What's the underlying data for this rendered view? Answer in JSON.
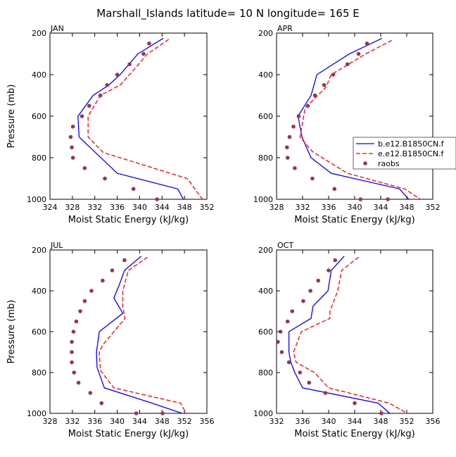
{
  "title": "Marshall_Islands   latitude= 10 N longitude= 165 E",
  "colors": {
    "b_series": "#0000ff",
    "e_series": "#ff0000",
    "raobs": "#a0305a"
  },
  "legend": {
    "placement": "right",
    "entries": [
      "b.e12.B1850CN.f",
      "e.e12.B1850CN.f",
      "raobs"
    ]
  },
  "chart_data": [
    {
      "type": "line",
      "panel": "JAN",
      "xlabel": "Moist Static Energy (kJ/kg)",
      "ylabel": "Pressure (mb)",
      "xlim": [
        324,
        352
      ],
      "xticks": [
        324,
        328,
        332,
        336,
        340,
        344,
        348,
        352
      ],
      "ylim": [
        1000,
        200
      ],
      "yticks": [
        200,
        400,
        600,
        800,
        1000
      ],
      "series": [
        {
          "name": "b.e12.B1850CN.f",
          "style": "solid",
          "color": "#0000ff",
          "x": [
            344.2,
            339.7,
            336.5,
            334.5,
            331.7,
            329.0,
            329.2,
            329.2,
            336.0,
            346.8,
            347.8
          ],
          "y": [
            225,
            300,
            400,
            450,
            500,
            600,
            700,
            700,
            875,
            950,
            1000
          ]
        },
        {
          "name": "e.e12.B1850CN.f",
          "style": "dashed",
          "color": "#ff0000",
          "x": [
            345.2,
            341.4,
            338.2,
            336.5,
            333.0,
            330.8,
            330.8,
            333.5,
            348.5,
            351.2
          ],
          "y": [
            230,
            300,
            400,
            450,
            500,
            600,
            700,
            775,
            900,
            1000
          ]
        },
        {
          "name": "raobs",
          "style": "markers",
          "color": "#a0305a",
          "x": [
            341.7,
            340.7,
            338.2,
            336.0,
            334.2,
            333.0,
            331.0,
            329.7,
            328.1,
            327.7,
            327.9,
            328.1,
            330.2,
            333.8,
            338.9,
            343.1
          ],
          "y": [
            250,
            300,
            350,
            400,
            450,
            500,
            550,
            600,
            650,
            700,
            750,
            800,
            850,
            900,
            950,
            1000
          ]
        }
      ]
    },
    {
      "type": "line",
      "panel": "APR",
      "xlabel": "Moist Static Energy (kJ/kg)",
      "ylabel": "",
      "xlim": [
        328,
        352
      ],
      "xticks": [
        328,
        332,
        336,
        340,
        344,
        348,
        352
      ],
      "ylim": [
        1000,
        200
      ],
      "yticks": [
        200,
        400,
        600,
        800,
        1000
      ],
      "series": [
        {
          "name": "b.e12.B1850CN.f",
          "style": "solid",
          "color": "#0000ff",
          "x": [
            344.2,
            339.2,
            334.2,
            333.3,
            331.3,
            331.9,
            333.3,
            336.4,
            346.9,
            348.3
          ],
          "y": [
            225,
            300,
            400,
            500,
            600,
            700,
            800,
            875,
            950,
            1000
          ]
        },
        {
          "name": "e.e12.B1850CN.f",
          "style": "dashed",
          "color": "#ff0000",
          "x": [
            345.7,
            341.7,
            336.4,
            335.6,
            332.4,
            331.6,
            333.5,
            338.9,
            347.7,
            350.1
          ],
          "y": [
            235,
            300,
            400,
            460,
            560,
            700,
            770,
            875,
            950,
            1000
          ]
        },
        {
          "name": "raobs",
          "style": "markers",
          "color": "#a0305a",
          "x": [
            341.9,
            340.6,
            338.9,
            336.7,
            335.3,
            333.9,
            332.8,
            331.4,
            330.6,
            330.0,
            329.6,
            329.7,
            330.8,
            333.5,
            336.9,
            340.9,
            345.1
          ],
          "y": [
            250,
            300,
            350,
            400,
            450,
            500,
            550,
            600,
            650,
            700,
            750,
            800,
            850,
            900,
            950,
            1000,
            1000
          ]
        }
      ]
    },
    {
      "type": "line",
      "panel": "JUL",
      "xlabel": "Moist Static Energy (kJ/kg)",
      "ylabel": "Pressure (mb)",
      "xlim": [
        328,
        356
      ],
      "xticks": [
        328,
        332,
        336,
        340,
        344,
        348,
        352,
        356
      ],
      "ylim": [
        1000,
        200
      ],
      "yticks": [
        200,
        400,
        600,
        800,
        1000
      ],
      "series": [
        {
          "name": "b.e12.B1850CN.f",
          "style": "solid",
          "color": "#0000ff",
          "x": [
            344.3,
            341.3,
            340.3,
            339.4,
            341.0,
            336.8,
            336.3,
            336.4,
            337.7,
            346.2,
            351.6
          ],
          "y": [
            230,
            300,
            375,
            435,
            510,
            600,
            700,
            775,
            875,
            950,
            1000
          ]
        },
        {
          "name": "e.e12.B1850CN.f",
          "style": "dashed",
          "color": "#ff0000",
          "x": [
            345.4,
            342.0,
            341.0,
            341.0,
            341.4,
            337.4,
            336.8,
            337.0,
            339.4,
            351.3,
            352.3
          ],
          "y": [
            235,
            300,
            400,
            475,
            535,
            665,
            700,
            790,
            875,
            950,
            1000
          ]
        },
        {
          "name": "raobs",
          "style": "markers",
          "color": "#a0305a",
          "x": [
            341.3,
            339.1,
            337.4,
            335.4,
            334.2,
            333.4,
            332.7,
            332.2,
            331.9,
            331.9,
            331.9,
            332.3,
            333.1,
            335.2,
            337.2,
            343.4,
            348.1
          ],
          "y": [
            250,
            300,
            350,
            400,
            450,
            500,
            550,
            600,
            650,
            700,
            750,
            800,
            850,
            900,
            950,
            1000,
            1000
          ]
        }
      ]
    },
    {
      "type": "line",
      "panel": "OCT",
      "xlabel": "Moist Static Energy (kJ/kg)",
      "ylabel": "",
      "xlim": [
        332,
        356
      ],
      "xticks": [
        332,
        336,
        340,
        344,
        348,
        352,
        356
      ],
      "ylim": [
        1000,
        200
      ],
      "yticks": [
        200,
        400,
        600,
        800,
        1000
      ],
      "series": [
        {
          "name": "b.e12.B1850CN.f",
          "style": "solid",
          "color": "#0000ff",
          "x": [
            342.4,
            340.4,
            339.9,
            337.6,
            337.3,
            333.9,
            333.9,
            334.2,
            334.8,
            336.0,
            347.6,
            349.4
          ],
          "y": [
            230,
            300,
            400,
            475,
            535,
            600,
            700,
            750,
            800,
            875,
            950,
            1000
          ]
        },
        {
          "name": "e.e12.B1850CN.f",
          "style": "dashed",
          "color": "#ff0000",
          "x": [
            344.6,
            342.0,
            341.4,
            340.2,
            340.2,
            335.8,
            334.6,
            335.0,
            337.8,
            340.0,
            349.3,
            352.1
          ],
          "y": [
            235,
            300,
            400,
            500,
            535,
            600,
            700,
            750,
            800,
            875,
            950,
            1000
          ]
        },
        {
          "name": "raobs",
          "style": "markers",
          "color": "#a0305a",
          "x": [
            341.0,
            340.0,
            338.4,
            337.2,
            336.1,
            334.4,
            333.7,
            332.6,
            332.2,
            332.8,
            333.9,
            335.6,
            337.0,
            339.5,
            344.0,
            348.1
          ],
          "y": [
            250,
            300,
            350,
            400,
            450,
            500,
            550,
            600,
            650,
            700,
            750,
            800,
            850,
            900,
            950,
            1000
          ]
        }
      ]
    }
  ]
}
